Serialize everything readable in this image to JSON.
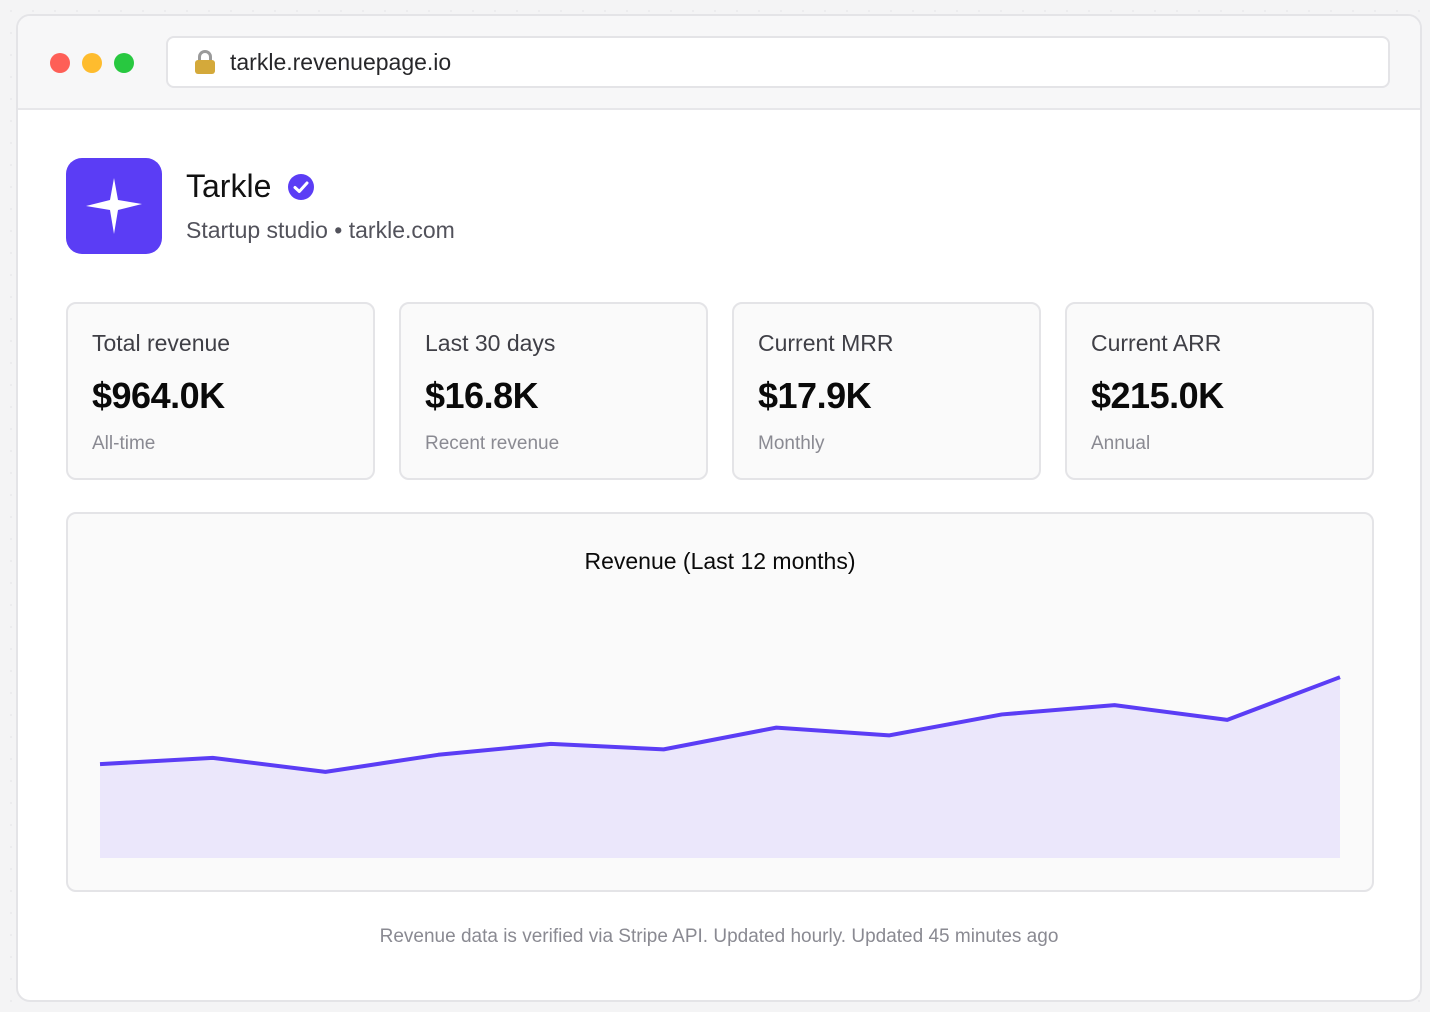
{
  "browser": {
    "url": "tarkle.revenuepage.io"
  },
  "company": {
    "name": "Tarkle",
    "subtitle": "Startup studio • tarkle.com",
    "logo_icon": "sparkle-icon",
    "verified_icon": "verified-check-icon",
    "accent_color": "#5b3df5"
  },
  "stats": [
    {
      "label": "Total revenue",
      "value": "$964.0K",
      "note": "All-time"
    },
    {
      "label": "Last 30 days",
      "value": "$16.8K",
      "note": "Recent revenue"
    },
    {
      "label": "Current MRR",
      "value": "$17.9K",
      "note": "Monthly"
    },
    {
      "label": "Current ARR",
      "value": "$215.0K",
      "note": "Annual"
    }
  ],
  "chart_data": {
    "type": "area",
    "title": "Revenue (Last 12 months)",
    "xlabel": "",
    "ylabel": "",
    "grid": false,
    "legend": "none",
    "line_color": "#5b3df5",
    "fill_color": "#ebe7fb",
    "values": [
      12.1,
      12.9,
      11.1,
      13.3,
      14.7,
      14.0,
      16.8,
      15.8,
      18.5,
      19.7,
      17.8,
      23.3
    ]
  },
  "footer": {
    "text": "Revenue data is verified via Stripe API. Updated hourly. Updated 45 minutes ago"
  }
}
